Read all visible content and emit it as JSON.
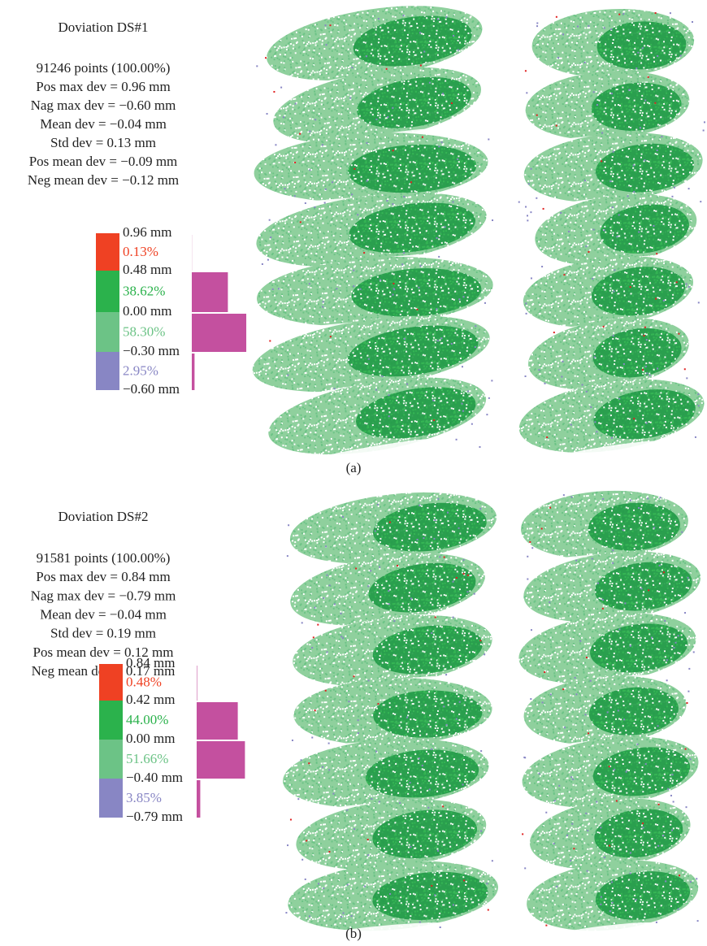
{
  "panels": [
    {
      "title": "Doviation DS#1",
      "stats": [
        "91246 points (100.00%)",
        "Pos max dev = 0.96 mm",
        "Nag max dev = −0.60 mm",
        "Mean dev = −0.04 mm",
        "Std dev = 0.13 mm",
        "Pos mean dev = −0.09 mm",
        "Neg mean dev = −0.12 mm"
      ],
      "legend": {
        "thresholds": [
          "0.96 mm",
          "0.48 mm",
          "0.00 mm",
          "−0.30 mm",
          "−0.60 mm"
        ],
        "percent_labels": [
          "0.13%",
          "38.62%",
          "58.30%",
          "2.95%"
        ],
        "percents": [
          0.13,
          38.62,
          58.3,
          2.95
        ],
        "colors": [
          "#ef4123",
          "#2bb24c",
          "#6cc386",
          "#8886c4"
        ],
        "histogram_color": "#c4509f"
      },
      "caption": "(a)"
    },
    {
      "title": "Doviation DS#2",
      "stats": [
        "91581 points (100.00%)",
        "Pos max dev = 0.84 mm",
        "Nag max dev = −0.79 mm",
        "Mean dev = −0.04 mm",
        "Std dev = 0.19 mm",
        "Pos mean dev = 0.12 mm",
        "Neg mean dev = 0.17 mm"
      ],
      "legend": {
        "thresholds": [
          "0.84 mm",
          "0.42 mm",
          "0.00 mm",
          "−0.40 mm",
          "−0.79 mm"
        ],
        "percent_labels": [
          "0.48%",
          "44.00%",
          "51.66%",
          "3.85%"
        ],
        "percents": [
          0.48,
          44.0,
          51.66,
          3.85
        ],
        "colors": [
          "#ef4123",
          "#2bb24c",
          "#6cc386",
          "#8886c4"
        ],
        "histogram_color": "#c4509f"
      },
      "caption": "(b)"
    }
  ]
}
